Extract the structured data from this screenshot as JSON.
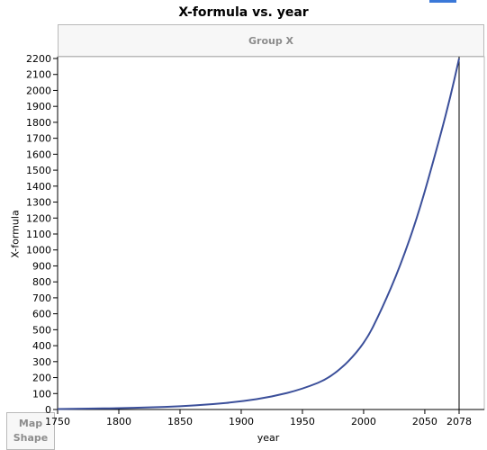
{
  "chart_data": {
    "type": "line",
    "title": "X-formula vs. year",
    "group_label": "Group X",
    "xlabel": "year",
    "ylabel": "X-formula",
    "xlim": [
      1750,
      2078
    ],
    "ylim": [
      0,
      2200
    ],
    "x_ticks": [
      1750,
      1800,
      1850,
      1900,
      1950,
      2000,
      2050
    ],
    "x_ticks_labels": [
      "1750",
      "1800",
      "1850",
      "1900",
      "1950",
      "2000",
      "2050"
    ],
    "ref_line": {
      "x": 2078,
      "label": "2078"
    },
    "y_ticks": [
      0,
      100,
      200,
      300,
      400,
      500,
      600,
      700,
      800,
      900,
      1000,
      1100,
      1200,
      1300,
      1400,
      1500,
      1600,
      1700,
      1800,
      1900,
      2000,
      2100,
      2200
    ],
    "y_ticks_labels": [
      "0",
      "100",
      "200",
      "300",
      "400",
      "500",
      "600",
      "700",
      "800",
      "900",
      "1000",
      "1100",
      "1200",
      "1300",
      "1400",
      "1500",
      "1600",
      "1700",
      "1800",
      "1900",
      "2000",
      "2100",
      "2200"
    ],
    "grid": false,
    "series": [
      {
        "color": "#3b4f9a",
        "x": [
          1750,
          1775,
          1800,
          1825,
          1850,
          1875,
          1900,
          1925,
          1950,
          1975,
          2000,
          2015,
          2030,
          2045,
          2060,
          2070,
          2078
        ],
        "y": [
          3,
          5,
          8,
          13,
          20,
          32,
          50,
          80,
          128,
          205,
          400,
          630,
          900,
          1230,
          1640,
          1930,
          2200
        ]
      }
    ]
  },
  "map_shape": {
    "line1": "Map",
    "line2": "Shape"
  }
}
